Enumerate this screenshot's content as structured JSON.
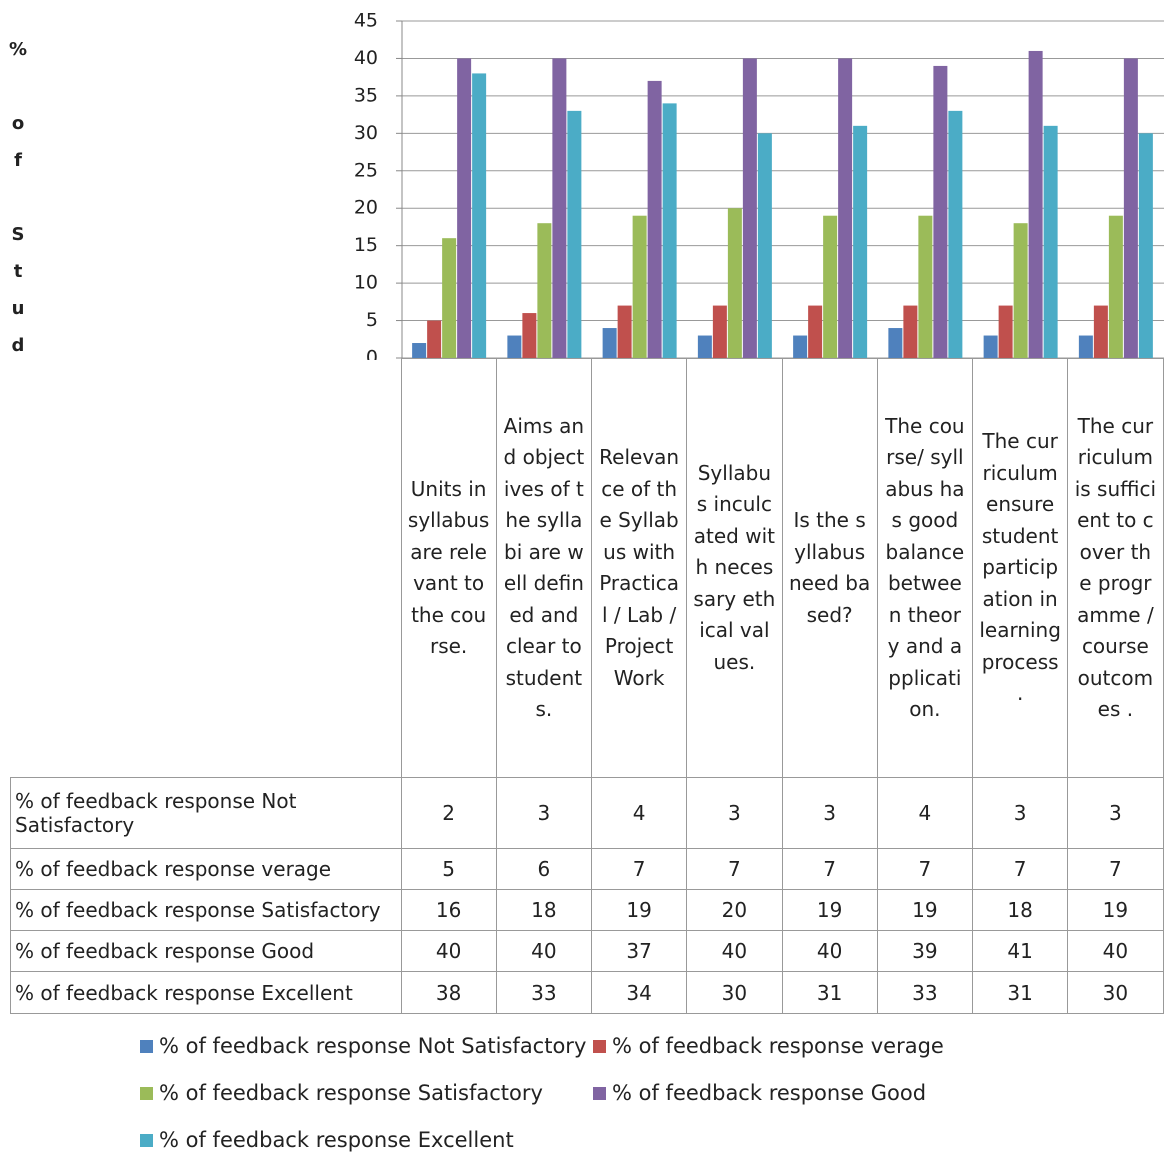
{
  "chart_data": {
    "type": "bar",
    "y_label": "% of Students",
    "categories": [
      "Units in syllabus are relevant to the course.",
      "Aims and objectives of the syllabi are well defined and clear to students.",
      "Relevance of the Syllabus with Practical  / Lab / Project Work",
      "Syllabus inculcated with necessary ethical values.",
      "Is the syllabus need based?",
      "The course/ syllabus has good balance between theory and application.",
      "The curriculum ensure student participation in learning process .",
      "The curriculum is sufficient to cover the programme / course outcomes ."
    ],
    "series": [
      {
        "name": "% of feedback response Not Satisfactory",
        "color": "#4f81bd",
        "values": [
          2,
          3,
          4,
          3,
          3,
          4,
          3,
          3
        ]
      },
      {
        "name": "% of feedback response verage",
        "color": "#c0504d",
        "values": [
          5,
          6,
          7,
          7,
          7,
          7,
          7,
          7
        ]
      },
      {
        "name": "% of feedback response Satisfactory",
        "color": "#9bbb59",
        "values": [
          16,
          18,
          19,
          20,
          19,
          19,
          18,
          19
        ]
      },
      {
        "name": "% of feedback response Good",
        "color": "#8064a2",
        "values": [
          40,
          40,
          37,
          40,
          40,
          39,
          41,
          40
        ]
      },
      {
        "name": "% of feedback response Excellent",
        "color": "#4bacc6",
        "values": [
          38,
          33,
          34,
          30,
          31,
          33,
          31,
          30
        ]
      }
    ],
    "ylim": [
      0,
      45
    ],
    "yticks": [
      0,
      5,
      10,
      15,
      20,
      25,
      30,
      35,
      40,
      45
    ],
    "grid": true
  }
}
